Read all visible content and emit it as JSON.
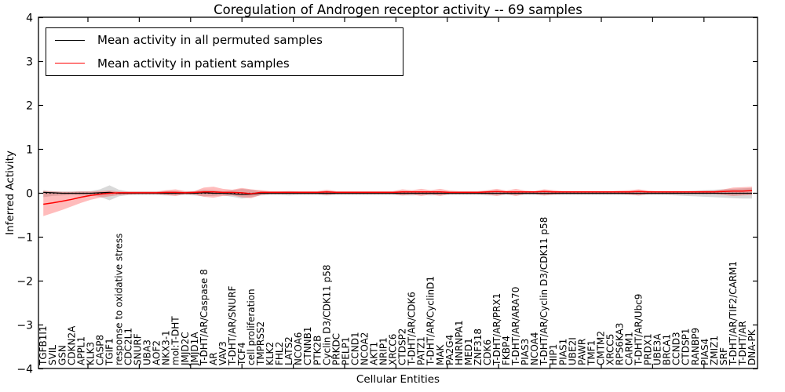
{
  "title": "Coregulation of Androgen receptor activity -- 69 samples",
  "legend": {
    "items": [
      {
        "label": "Mean activity in all permuted samples",
        "color": "#000000"
      },
      {
        "label": "Mean activity in patient samples",
        "color": "#ff0000"
      }
    ]
  },
  "axes": {
    "xlabel": "Cellular Entities",
    "ylabel": "Inferred Activity",
    "ylim": [
      -4,
      4
    ],
    "yticks": [
      4,
      3,
      2,
      1,
      0,
      -1,
      -2,
      -3,
      -4
    ],
    "yticklabels": [
      "4",
      "3",
      "2",
      "1",
      "0",
      "−1",
      "−2",
      "−3",
      "−4"
    ]
  },
  "chart_data": {
    "type": "line",
    "title": "Coregulation of Androgen receptor activity -- 69 samples",
    "xlabel": "Cellular Entities",
    "ylabel": "Inferred Activity",
    "ylim": [
      -4,
      4
    ],
    "grid": false,
    "legend_position": "upper left",
    "zero_line": {
      "style": "dotted",
      "color": "#000000",
      "y": 0
    },
    "categories": [
      "TGFB1I1",
      "SVIL",
      "GSN",
      "CDKN2A",
      "APPL1",
      "KLK3",
      "CASP8",
      "TGIF1",
      "response to oxidative stress",
      "CDC2L1",
      "SNURF",
      "UBA3",
      "AOF2",
      "NKX3-1",
      "mol:T-DHT",
      "JMJD2C",
      "JMJD1A",
      "T-DHT/AR/Caspase 8",
      "AR",
      "VAV3",
      "T-DHT/AR/SNURF",
      "TCF4",
      "cell proliferation",
      "TMPRSS2",
      "KLK2",
      "FHL2",
      "LATS2",
      "NCOA6",
      "CTNNB1",
      "PTK2B",
      "Cyclin D3/CDK11 p58",
      "PRKDC",
      "PELP1",
      "CCND1",
      "NCOA2",
      "AKT1",
      "NRIP1",
      "XRCC6",
      "CTDSP2",
      "T-DHT/AR/CDK6",
      "PATZ1",
      "T-DHT/AR/CyclinD1",
      "MAK",
      "PA2G4",
      "HNRNPA1",
      "MED1",
      "ZNF318",
      "CDK6",
      "T-DHT/AR/PRX1",
      "FKBP4",
      "T-DHT/AR/ARA70",
      "PIAS3",
      "NCOA4",
      "T-DHT/AR/Cyclin D3/CDK11 p58",
      "HIP1",
      "PIAS1",
      "UBE2I",
      "PAWR",
      "TMF1",
      "CMTM2",
      "XRCC5",
      "RPS6KA3",
      "CARM1",
      "T-DHT/AR/Ubc9",
      "PRDX1",
      "UBE3A",
      "BRCA1",
      "CCND3",
      "CTDSP1",
      "RANBP9",
      "PIAS4",
      "ZMIZ1",
      "SRF",
      "T-DHT/AR/TIF2/CARM1",
      "T-DHT/AR",
      "DNA-PK"
    ],
    "series": [
      {
        "name": "Mean activity in all permuted samples",
        "color": "#000000",
        "band_color": "#808080",
        "band_opacity": 0.3,
        "values": [
          0.02,
          0.01,
          0,
          0,
          0,
          0,
          0.01,
          0.02,
          0,
          0,
          0,
          0,
          0,
          0,
          0,
          0,
          0,
          0.01,
          0,
          0,
          -0.01,
          -0.03,
          -0.02,
          0,
          0,
          0,
          0,
          0,
          0,
          0,
          0,
          0,
          0,
          0,
          0,
          0,
          0,
          0,
          0,
          0,
          0,
          0,
          0,
          0,
          0,
          0,
          0,
          0,
          0,
          0,
          0,
          0,
          0,
          0,
          0,
          0,
          0,
          0,
          0,
          0,
          0,
          0,
          0,
          0,
          0,
          0,
          0,
          0,
          0,
          0,
          0,
          0,
          0,
          0,
          0,
          0
        ],
        "band_upper": [
          0.07,
          0.05,
          0.04,
          0.04,
          0.05,
          0.05,
          0.09,
          0.18,
          0.08,
          0.04,
          0.04,
          0.04,
          0.04,
          0.05,
          0.05,
          0.04,
          0.05,
          0.08,
          0.07,
          0.05,
          0.07,
          0.1,
          0.08,
          0.05,
          0.04,
          0.04,
          0.05,
          0.04,
          0.04,
          0.04,
          0.05,
          0.04,
          0.04,
          0.04,
          0.04,
          0.04,
          0.04,
          0.04,
          0.05,
          0.05,
          0.04,
          0.05,
          0.04,
          0.04,
          0.04,
          0.04,
          0.04,
          0.05,
          0.05,
          0.04,
          0.05,
          0.04,
          0.04,
          0.05,
          0.04,
          0.04,
          0.04,
          0.04,
          0.04,
          0.04,
          0.04,
          0.04,
          0.04,
          0.05,
          0.04,
          0.04,
          0.04,
          0.05,
          0.05,
          0.06,
          0.07,
          0.08,
          0.09,
          0.1,
          0.11,
          0.12
        ],
        "band_lower": [
          -0.09,
          -0.06,
          -0.05,
          -0.04,
          -0.05,
          -0.05,
          -0.08,
          -0.16,
          -0.07,
          -0.04,
          -0.04,
          -0.04,
          -0.04,
          -0.05,
          -0.05,
          -0.04,
          -0.05,
          -0.07,
          -0.06,
          -0.05,
          -0.08,
          -0.12,
          -0.09,
          -0.05,
          -0.04,
          -0.04,
          -0.05,
          -0.04,
          -0.04,
          -0.04,
          -0.05,
          -0.04,
          -0.04,
          -0.04,
          -0.04,
          -0.04,
          -0.04,
          -0.04,
          -0.05,
          -0.05,
          -0.04,
          -0.05,
          -0.04,
          -0.04,
          -0.04,
          -0.04,
          -0.04,
          -0.05,
          -0.05,
          -0.04,
          -0.05,
          -0.04,
          -0.04,
          -0.05,
          -0.04,
          -0.04,
          -0.04,
          -0.04,
          -0.04,
          -0.04,
          -0.04,
          -0.04,
          -0.04,
          -0.05,
          -0.04,
          -0.04,
          -0.04,
          -0.05,
          -0.06,
          -0.07,
          -0.08,
          -0.09,
          -0.1,
          -0.11,
          -0.12,
          -0.12
        ]
      },
      {
        "name": "Mean activity in patient samples",
        "color": "#ff0000",
        "band_color": "#ff2020",
        "band_opacity": 0.3,
        "values": [
          -0.25,
          -0.22,
          -0.18,
          -0.14,
          -0.09,
          -0.05,
          -0.02,
          0,
          0.01,
          0.01,
          0.01,
          0.01,
          0.01,
          0.02,
          0.02,
          0.01,
          0.02,
          0.03,
          0.03,
          0.02,
          0.02,
          0.01,
          -0.01,
          0.02,
          0.02,
          0.02,
          0.02,
          0.02,
          0.02,
          0.02,
          0.03,
          0.02,
          0.02,
          0.02,
          0.02,
          0.02,
          0.02,
          0.02,
          0.03,
          0.03,
          0.03,
          0.03,
          0.03,
          0.02,
          0.02,
          0.02,
          0.02,
          0.03,
          0.04,
          0.03,
          0.03,
          0.03,
          0.03,
          0.04,
          0.03,
          0.03,
          0.03,
          0.03,
          0.03,
          0.03,
          0.03,
          0.03,
          0.03,
          0.04,
          0.03,
          0.03,
          0.03,
          0.03,
          0.03,
          0.03,
          0.03,
          0.03,
          0.04,
          0.05,
          0.05,
          0.06
        ],
        "band_upper": [
          0.05,
          0.04,
          0.03,
          0.03,
          0.04,
          0.04,
          0.05,
          0.06,
          0.04,
          0.04,
          0.04,
          0.04,
          0.04,
          0.07,
          0.09,
          0.05,
          0.05,
          0.13,
          0.15,
          0.1,
          0.08,
          0.12,
          0.09,
          0.07,
          0.05,
          0.05,
          0.05,
          0.05,
          0.05,
          0.05,
          0.08,
          0.05,
          0.05,
          0.05,
          0.05,
          0.05,
          0.05,
          0.05,
          0.09,
          0.07,
          0.1,
          0.07,
          0.1,
          0.06,
          0.05,
          0.05,
          0.05,
          0.07,
          0.1,
          0.06,
          0.1,
          0.06,
          0.05,
          0.09,
          0.07,
          0.05,
          0.05,
          0.05,
          0.05,
          0.05,
          0.05,
          0.06,
          0.07,
          0.09,
          0.06,
          0.05,
          0.05,
          0.05,
          0.05,
          0.05,
          0.06,
          0.06,
          0.09,
          0.13,
          0.14,
          0.15
        ],
        "band_lower": [
          -0.52,
          -0.45,
          -0.38,
          -0.3,
          -0.22,
          -0.15,
          -0.1,
          -0.07,
          -0.04,
          -0.03,
          -0.02,
          -0.02,
          -0.02,
          -0.04,
          -0.06,
          -0.02,
          -0.03,
          -0.08,
          -0.1,
          -0.06,
          -0.05,
          -0.09,
          -0.11,
          -0.04,
          -0.02,
          -0.02,
          -0.02,
          -0.02,
          -0.02,
          -0.02,
          -0.04,
          -0.02,
          -0.02,
          -0.02,
          -0.02,
          -0.02,
          -0.02,
          -0.02,
          -0.05,
          -0.03,
          -0.06,
          -0.03,
          -0.06,
          -0.02,
          -0.02,
          -0.02,
          -0.02,
          -0.03,
          -0.06,
          -0.02,
          -0.06,
          -0.02,
          -0.02,
          -0.05,
          -0.03,
          -0.02,
          -0.02,
          -0.02,
          -0.02,
          -0.02,
          -0.02,
          -0.02,
          -0.03,
          -0.05,
          -0.02,
          -0.02,
          -0.02,
          -0.02,
          -0.02,
          -0.02,
          -0.02,
          -0.02,
          -0.04,
          -0.06,
          -0.05,
          -0.04
        ]
      }
    ]
  }
}
